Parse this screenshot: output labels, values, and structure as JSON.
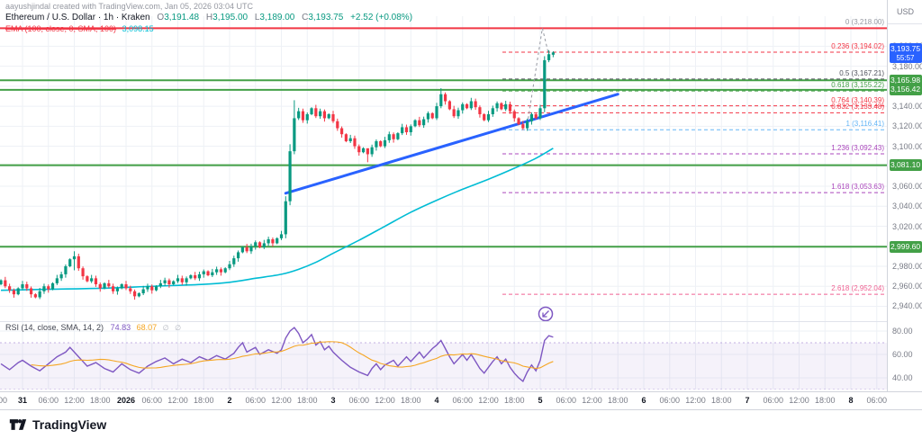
{
  "watermark": "aayushjindal created with TradingView.com, Jan 05, 2026 03:04 UTC",
  "header": {
    "symbol_title": "Ethereum / U.S. Dollar · 1h · Kraken",
    "ohlc": {
      "o_label": "O",
      "o": "3,191.48",
      "h_label": "H",
      "h": "3,195.00",
      "l_label": "L",
      "l": "3,189.00",
      "c_label": "C",
      "c": "3,193.75",
      "change": "+2.52 (+0.08%)"
    },
    "ema": {
      "label": "EMA (100, close, 0, SMA, 100)",
      "value": "3,098.15"
    }
  },
  "rsi_header": {
    "label": "RSI (14, close, SMA, 14, 2)",
    "value": "74.83",
    "ma_value": "68.07",
    "empty_icon": "∅"
  },
  "price_axis": {
    "currency": "USD",
    "ticks": [
      {
        "p": 3200,
        "label": "3,200.00"
      },
      {
        "p": 3180,
        "label": "3,180.00"
      },
      {
        "p": 3140,
        "label": "3,140.00"
      },
      {
        "p": 3120,
        "label": "3,120.00"
      },
      {
        "p": 3100,
        "label": "3,100.00"
      },
      {
        "p": 3060,
        "label": "3,060.00"
      },
      {
        "p": 3040,
        "label": "3,040.00"
      },
      {
        "p": 3020,
        "label": "3,020.00"
      },
      {
        "p": 2980,
        "label": "2,980.00"
      },
      {
        "p": 2960,
        "label": "2,960.00"
      },
      {
        "p": 2940,
        "label": "2,940.00"
      }
    ],
    "badges": [
      {
        "p": 3193.75,
        "label": "3,193.75",
        "sub": "55:57",
        "color": "#2962ff",
        "name": "last-price-badge"
      },
      {
        "p": 3165.98,
        "label": "3,165.98",
        "color": "#43a047",
        "name": "level-price-badge"
      },
      {
        "p": 3156.42,
        "label": "3,156.42",
        "color": "#43a047",
        "name": "level-price-badge"
      },
      {
        "p": 3081.1,
        "label": "3,081.10",
        "color": "#43a047",
        "name": "level-price-badge"
      },
      {
        "p": 2999.6,
        "label": "2,999.60",
        "color": "#43a047",
        "name": "level-price-badge"
      }
    ]
  },
  "rsi_axis": {
    "ticks": [
      {
        "v": 80,
        "label": "80.00"
      },
      {
        "v": 60,
        "label": "60.00"
      },
      {
        "v": 40,
        "label": "40.00"
      }
    ]
  },
  "time_axis": {
    "labels": [
      {
        "i": -4.6,
        "text": "00"
      },
      {
        "i": 0,
        "text": "31",
        "major": true
      },
      {
        "i": 6,
        "text": "06:00"
      },
      {
        "i": 12,
        "text": "12:00"
      },
      {
        "i": 18,
        "text": "18:00"
      },
      {
        "i": 24,
        "text": "2026",
        "major": true
      },
      {
        "i": 30,
        "text": "06:00"
      },
      {
        "i": 36,
        "text": "12:00"
      },
      {
        "i": 42,
        "text": "18:00"
      },
      {
        "i": 48,
        "text": "2",
        "major": true
      },
      {
        "i": 54,
        "text": "06:00"
      },
      {
        "i": 60,
        "text": "12:00"
      },
      {
        "i": 66,
        "text": "18:00"
      },
      {
        "i": 72,
        "text": "3",
        "major": true
      },
      {
        "i": 78,
        "text": "06:00"
      },
      {
        "i": 84,
        "text": "12:00"
      },
      {
        "i": 90,
        "text": "18:00"
      },
      {
        "i": 96,
        "text": "4",
        "major": true
      },
      {
        "i": 102,
        "text": "06:00"
      },
      {
        "i": 108,
        "text": "12:00"
      },
      {
        "i": 114,
        "text": "18:00"
      },
      {
        "i": 120,
        "text": "5",
        "major": true
      },
      {
        "i": 126,
        "text": "06:00"
      },
      {
        "i": 132,
        "text": "12:00"
      },
      {
        "i": 138,
        "text": "18:00"
      },
      {
        "i": 144,
        "text": "6",
        "major": true
      },
      {
        "i": 150,
        "text": "06:00"
      },
      {
        "i": 156,
        "text": "12:00"
      },
      {
        "i": 162,
        "text": "18:00"
      },
      {
        "i": 168,
        "text": "7",
        "major": true
      },
      {
        "i": 174,
        "text": "06:00"
      },
      {
        "i": 180,
        "text": "12:00"
      },
      {
        "i": 186,
        "text": "18:00"
      },
      {
        "i": 192,
        "text": "8",
        "major": true
      },
      {
        "i": 198,
        "text": "06:00"
      }
    ]
  },
  "chart_data": {
    "type": "candlestick",
    "title": "Ethereum / U.S. Dollar",
    "interval": "1h",
    "exchange": "Kraken",
    "ylabel": "USD",
    "visible_price_range": [
      2926,
      3230
    ],
    "x_span": "Dec 30 19:00 - Jan 5 03:00 (candles), axis extends to Jan 8 06:00",
    "last": {
      "open": 3191.48,
      "high": 3195.0,
      "low": 3189.0,
      "close": 3193.75,
      "change_pct": 0.08
    },
    "start_hour_index": -5,
    "closes": [
      2966,
      2960,
      2956,
      2952,
      2958,
      2962,
      2958,
      2952,
      2949,
      2955,
      2960,
      2957,
      2963,
      2968,
      2972,
      2980,
      2987,
      2990,
      2978,
      2970,
      2965,
      2968,
      2962,
      2958,
      2963,
      2960,
      2955,
      2958,
      2962,
      2958,
      2955,
      2950,
      2953,
      2957,
      2960,
      2956,
      2960,
      2963,
      2966,
      2962,
      2965,
      2968,
      2964,
      2968,
      2971,
      2968,
      2972,
      2975,
      2971,
      2974,
      2977,
      2974,
      2978,
      2982,
      2988,
      2994,
      2999,
      2995,
      3000,
      3004,
      2999,
      3003,
      3007,
      3003,
      3008,
      3012,
      3045,
      3095,
      3128,
      3135,
      3126,
      3132,
      3138,
      3130,
      3135,
      3128,
      3132,
      3125,
      3118,
      3112,
      3105,
      3108,
      3100,
      3094,
      3098,
      3092,
      3099,
      3105,
      3100,
      3106,
      3112,
      3107,
      3113,
      3119,
      3114,
      3120,
      3126,
      3121,
      3127,
      3133,
      3128,
      3140,
      3152,
      3145,
      3137,
      3130,
      3136,
      3142,
      3138,
      3145,
      3139,
      3132,
      3126,
      3132,
      3138,
      3143,
      3137,
      3142,
      3135,
      3128,
      3122,
      3118,
      3125,
      3132,
      3128,
      3138,
      3186,
      3192,
      3193.75
    ],
    "wick_overrides": {
      "17": [
        2995,
        2976
      ],
      "66": [
        3050,
        3008
      ],
      "67": [
        3102,
        3041
      ],
      "68": [
        3146,
        3092
      ],
      "85": [
        3097,
        3084
      ],
      "102": [
        3158,
        3138
      ],
      "126": [
        3190,
        3134
      ],
      "127": [
        3196,
        3184
      ]
    },
    "last_candle": [
      3191.48,
      3195,
      3189,
      3193.75
    ],
    "levels": {
      "horizontal_green": [
        3165.98,
        3156.42,
        3081.1,
        2999.6
      ],
      "horizontal_red": 3218,
      "fib": [
        {
          "level": "0",
          "price": 3218.0,
          "label": "0 (3,218.00)",
          "color": "#9598a1",
          "line": false
        },
        {
          "level": "0.236",
          "price": 3194.02,
          "label": "0.236 (3,194.02)",
          "color": "#f23645",
          "line": true
        },
        {
          "level": "0.5",
          "price": 3167.21,
          "label": "0.5 (3,167.21)",
          "color": "#50535e",
          "line": true
        },
        {
          "level": "0.618",
          "price": 3155.22,
          "label": "0.618 (3,155.22)",
          "color": "#43a047",
          "line": true
        },
        {
          "level": "0.764",
          "price": 3140.39,
          "label": "0.764 (3,140.39)",
          "color": "#f23645",
          "line": true
        },
        {
          "level": "0.832",
          "price": 3133.48,
          "label": "0.832 (3,133.48)",
          "color": "#f23645",
          "line": true
        },
        {
          "level": "1",
          "price": 3116.41,
          "label": "1 (3,116.41)",
          "color": "#64b5f6",
          "line": true
        },
        {
          "level": "1.236",
          "price": 3092.43,
          "label": "1.236 (3,092.43)",
          "color": "#ab47bc",
          "line": true
        },
        {
          "level": "1.618",
          "price": 3053.63,
          "label": "1.618 (3,053.63)",
          "color": "#ab47bc",
          "line": true
        },
        {
          "level": "2.618",
          "price": 2952.04,
          "label": "2.618 (2,952.04)",
          "color": "#f06292",
          "line": true
        }
      ]
    },
    "trendline": {
      "from": {
        "i": 61,
        "p": 3053
      },
      "to": {
        "i": 138,
        "p": 3152
      }
    },
    "ema_points": [
      [
        -5,
        2956
      ],
      [
        6,
        2957
      ],
      [
        18,
        2958
      ],
      [
        30,
        2960
      ],
      [
        42,
        2962
      ],
      [
        48,
        2964
      ],
      [
        54,
        2968
      ],
      [
        60,
        2972
      ],
      [
        64,
        2977
      ],
      [
        68,
        2984
      ],
      [
        72,
        2993
      ],
      [
        78,
        3006
      ],
      [
        84,
        3020
      ],
      [
        90,
        3034
      ],
      [
        96,
        3046
      ],
      [
        102,
        3057
      ],
      [
        108,
        3067
      ],
      [
        114,
        3078
      ],
      [
        119,
        3088
      ],
      [
        123,
        3098
      ]
    ],
    "anchor_path": [
      [
        117,
        3122
      ],
      [
        120.5,
        3218
      ],
      [
        122,
        3191
      ]
    ],
    "rsi": {
      "band": [
        30,
        70
      ],
      "points": [
        [
          -5,
          52
        ],
        [
          -3,
          47
        ],
        [
          -1,
          53
        ],
        [
          0,
          55
        ],
        [
          2,
          50
        ],
        [
          4,
          46
        ],
        [
          6,
          52
        ],
        [
          8,
          58
        ],
        [
          10,
          62
        ],
        [
          11,
          66
        ],
        [
          13,
          58
        ],
        [
          15,
          50
        ],
        [
          17,
          53
        ],
        [
          19,
          48
        ],
        [
          21,
          45
        ],
        [
          23,
          52
        ],
        [
          25,
          47
        ],
        [
          27,
          44
        ],
        [
          29,
          50
        ],
        [
          31,
          54
        ],
        [
          33,
          57
        ],
        [
          35,
          52
        ],
        [
          37,
          56
        ],
        [
          39,
          53
        ],
        [
          41,
          58
        ],
        [
          43,
          55
        ],
        [
          45,
          59
        ],
        [
          47,
          56
        ],
        [
          49,
          61
        ],
        [
          50,
          66
        ],
        [
          51,
          70
        ],
        [
          52,
          62
        ],
        [
          54,
          66
        ],
        [
          55,
          60
        ],
        [
          57,
          64
        ],
        [
          59,
          61
        ],
        [
          60,
          64
        ],
        [
          61,
          74
        ],
        [
          62,
          80
        ],
        [
          63,
          83
        ],
        [
          64,
          78
        ],
        [
          65,
          70
        ],
        [
          66,
          73
        ],
        [
          67,
          77
        ],
        [
          68,
          68
        ],
        [
          69,
          71
        ],
        [
          70,
          64
        ],
        [
          71,
          67
        ],
        [
          72,
          62
        ],
        [
          74,
          55
        ],
        [
          76,
          49
        ],
        [
          78,
          45
        ],
        [
          80,
          42
        ],
        [
          81,
          48
        ],
        [
          82,
          52
        ],
        [
          83,
          47
        ],
        [
          84,
          51
        ],
        [
          86,
          55
        ],
        [
          87,
          50
        ],
        [
          88,
          54
        ],
        [
          89,
          58
        ],
        [
          90,
          54
        ],
        [
          91,
          58
        ],
        [
          92,
          62
        ],
        [
          93,
          57
        ],
        [
          94,
          61
        ],
        [
          95,
          65
        ],
        [
          96,
          68
        ],
        [
          97,
          72
        ],
        [
          98,
          65
        ],
        [
          99,
          58
        ],
        [
          100,
          52
        ],
        [
          101,
          56
        ],
        [
          102,
          60
        ],
        [
          103,
          55
        ],
        [
          104,
          60
        ],
        [
          105,
          54
        ],
        [
          106,
          48
        ],
        [
          107,
          44
        ],
        [
          108,
          49
        ],
        [
          109,
          54
        ],
        [
          110,
          58
        ],
        [
          111,
          52
        ],
        [
          112,
          56
        ],
        [
          113,
          49
        ],
        [
          114,
          44
        ],
        [
          115,
          40
        ],
        [
          116,
          37
        ],
        [
          117,
          45
        ],
        [
          118,
          51
        ],
        [
          119,
          46
        ],
        [
          120,
          55
        ],
        [
          121,
          72
        ],
        [
          122,
          76
        ],
        [
          123,
          74.8
        ]
      ]
    },
    "colors": {
      "up": "#089981",
      "down": "#f23645",
      "ema": "#00bcd4",
      "trend": "#2962ff",
      "line_green": "#43a047",
      "line_red": "#f23645",
      "rsi": "#7e57c2",
      "rsi_ma": "#f5a623",
      "grid": "#eef1f6",
      "axis_text": "#787b86",
      "text": "#131722"
    }
  },
  "footer": {
    "brand": "TradingView"
  }
}
